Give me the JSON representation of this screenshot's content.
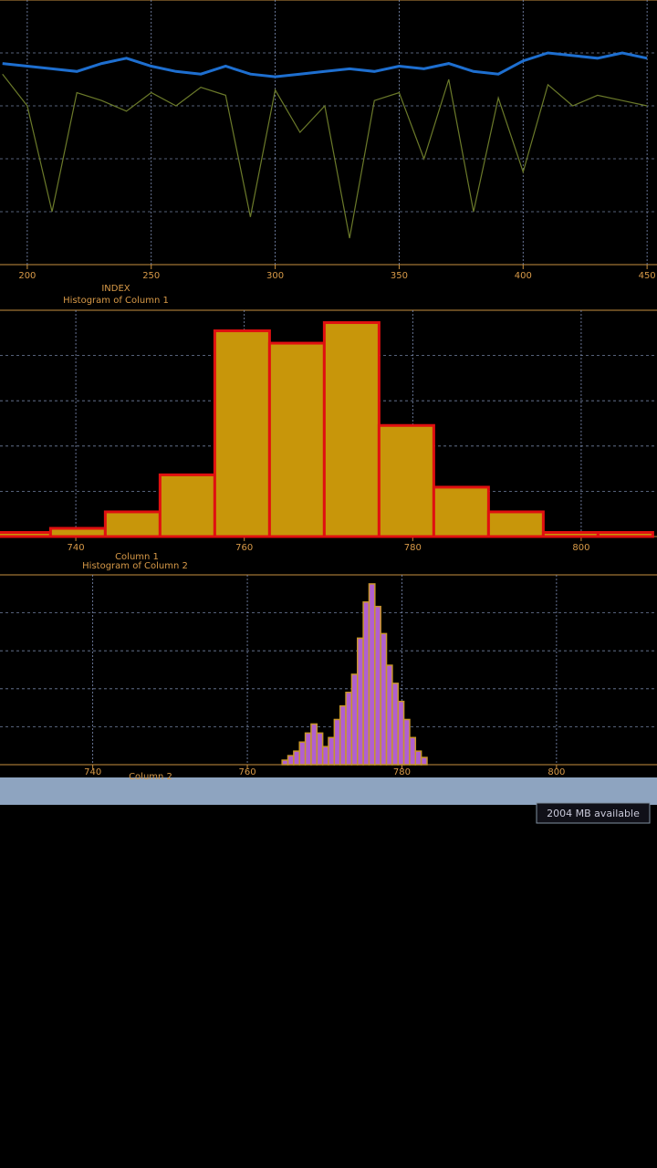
{
  "chart_data": [
    {
      "type": "line",
      "x_label": "INDEX",
      "x": [
        190,
        200,
        210,
        220,
        230,
        240,
        250,
        260,
        270,
        280,
        290,
        300,
        310,
        320,
        330,
        340,
        350,
        360,
        370,
        380,
        390,
        400,
        410,
        420,
        430,
        440,
        450
      ],
      "series": [
        {
          "color": "#6b7a2a",
          "values": [
            72,
            60,
            20,
            65,
            62,
            58,
            65,
            60,
            67,
            64,
            18,
            66,
            50,
            60,
            10,
            62,
            65,
            40,
            70,
            20,
            63,
            35,
            68,
            60,
            64,
            62,
            60
          ]
        },
        {
          "color": "#1e6fd0",
          "values": [
            76,
            75,
            74,
            73,
            76,
            78,
            75,
            73,
            72,
            75,
            72,
            71,
            72,
            73,
            74,
            73,
            75,
            74,
            76,
            73,
            72,
            77,
            80,
            79,
            78,
            80,
            78
          ]
        }
      ],
      "xlim": [
        189,
        454
      ],
      "ylim": [
        0,
        100
      ],
      "xticks": [
        200,
        250,
        300,
        350,
        400,
        450
      ],
      "grid": true
    },
    {
      "type": "histogram",
      "title": "Histogram of Column 1",
      "x_label": "Column 1",
      "bins": [
        730.5,
        737,
        743.5,
        750,
        756.5,
        763,
        769.5,
        776,
        782.5,
        789,
        795.5,
        802,
        808.5
      ],
      "values": [
        1,
        2,
        6,
        15,
        50,
        47,
        52,
        27,
        12,
        6,
        1,
        1
      ],
      "color": "#c8960a",
      "edge_color": "#e01010",
      "xlim": [
        731,
        809
      ],
      "ylim": [
        0,
        55
      ],
      "xticks": [
        740,
        760,
        780,
        800
      ],
      "grid": true
    },
    {
      "type": "histogram",
      "title": "Histogram of Column 2",
      "x_label": "Column 2",
      "bins": [
        764.5,
        765.25,
        766,
        766.75,
        767.5,
        768.25,
        769,
        769.75,
        770.5,
        771.25,
        772,
        772.75,
        773.5,
        774.25,
        775,
        775.75,
        776.5,
        777.25,
        778,
        778.75,
        779.5,
        780.25,
        781,
        781.75,
        782.5,
        783.25
      ],
      "values": [
        5,
        10,
        15,
        25,
        35,
        45,
        35,
        20,
        30,
        50,
        65,
        80,
        100,
        140,
        180,
        200,
        175,
        145,
        110,
        90,
        70,
        50,
        30,
        15,
        8
      ],
      "color": "#b060d0",
      "edge_color": "#c8962a",
      "xlim": [
        728,
        813
      ],
      "ylim": [
        0,
        210
      ],
      "xticks": [
        740,
        760,
        780,
        800
      ],
      "grid": true
    }
  ],
  "status_bar": {
    "memory": "2004 MB available"
  }
}
